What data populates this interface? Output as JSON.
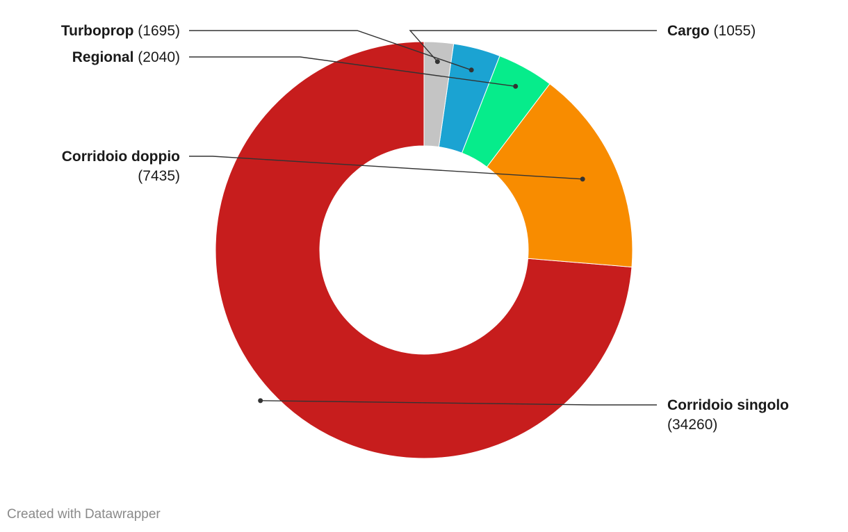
{
  "chart_data": {
    "type": "pie",
    "subtype": "donut",
    "categories": [
      "Corridoio singolo",
      "Corridoio doppio",
      "Regional",
      "Turboprop",
      "Cargo"
    ],
    "values": [
      34260,
      7435,
      2040,
      1695,
      1055
    ],
    "colors": [
      "#c71d1d",
      "#f88c00",
      "#06ec8b",
      "#1ba3d2",
      "#c4c4c4"
    ],
    "value_labels": [
      "(34260)",
      "(7435)",
      "(2040)",
      "(1695)",
      "(1055)"
    ],
    "legend": "none"
  },
  "footer": {
    "credit": "Created with Datawrapper"
  }
}
